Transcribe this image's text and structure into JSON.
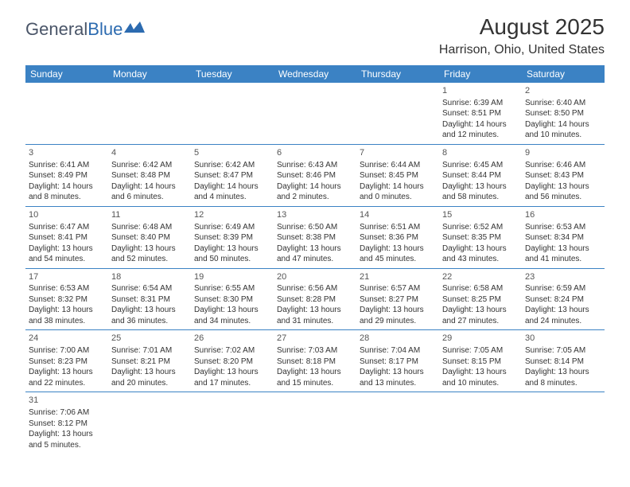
{
  "logo": {
    "text_dark": "General",
    "text_blue": "Blue"
  },
  "title": "August 2025",
  "location": "Harrison, Ohio, United States",
  "colors": {
    "header_bg": "#3b82c4",
    "header_text": "#ffffff",
    "row_border": "#3b82c4",
    "body_text": "#333333",
    "logo_dark": "#4a5568",
    "logo_blue": "#2c6bb0"
  },
  "day_headers": [
    "Sunday",
    "Monday",
    "Tuesday",
    "Wednesday",
    "Thursday",
    "Friday",
    "Saturday"
  ],
  "weeks": [
    [
      null,
      null,
      null,
      null,
      null,
      {
        "day": "1",
        "sunrise": "Sunrise: 6:39 AM",
        "sunset": "Sunset: 8:51 PM",
        "daylight1": "Daylight: 14 hours",
        "daylight2": "and 12 minutes."
      },
      {
        "day": "2",
        "sunrise": "Sunrise: 6:40 AM",
        "sunset": "Sunset: 8:50 PM",
        "daylight1": "Daylight: 14 hours",
        "daylight2": "and 10 minutes."
      }
    ],
    [
      {
        "day": "3",
        "sunrise": "Sunrise: 6:41 AM",
        "sunset": "Sunset: 8:49 PM",
        "daylight1": "Daylight: 14 hours",
        "daylight2": "and 8 minutes."
      },
      {
        "day": "4",
        "sunrise": "Sunrise: 6:42 AM",
        "sunset": "Sunset: 8:48 PM",
        "daylight1": "Daylight: 14 hours",
        "daylight2": "and 6 minutes."
      },
      {
        "day": "5",
        "sunrise": "Sunrise: 6:42 AM",
        "sunset": "Sunset: 8:47 PM",
        "daylight1": "Daylight: 14 hours",
        "daylight2": "and 4 minutes."
      },
      {
        "day": "6",
        "sunrise": "Sunrise: 6:43 AM",
        "sunset": "Sunset: 8:46 PM",
        "daylight1": "Daylight: 14 hours",
        "daylight2": "and 2 minutes."
      },
      {
        "day": "7",
        "sunrise": "Sunrise: 6:44 AM",
        "sunset": "Sunset: 8:45 PM",
        "daylight1": "Daylight: 14 hours",
        "daylight2": "and 0 minutes."
      },
      {
        "day": "8",
        "sunrise": "Sunrise: 6:45 AM",
        "sunset": "Sunset: 8:44 PM",
        "daylight1": "Daylight: 13 hours",
        "daylight2": "and 58 minutes."
      },
      {
        "day": "9",
        "sunrise": "Sunrise: 6:46 AM",
        "sunset": "Sunset: 8:43 PM",
        "daylight1": "Daylight: 13 hours",
        "daylight2": "and 56 minutes."
      }
    ],
    [
      {
        "day": "10",
        "sunrise": "Sunrise: 6:47 AM",
        "sunset": "Sunset: 8:41 PM",
        "daylight1": "Daylight: 13 hours",
        "daylight2": "and 54 minutes."
      },
      {
        "day": "11",
        "sunrise": "Sunrise: 6:48 AM",
        "sunset": "Sunset: 8:40 PM",
        "daylight1": "Daylight: 13 hours",
        "daylight2": "and 52 minutes."
      },
      {
        "day": "12",
        "sunrise": "Sunrise: 6:49 AM",
        "sunset": "Sunset: 8:39 PM",
        "daylight1": "Daylight: 13 hours",
        "daylight2": "and 50 minutes."
      },
      {
        "day": "13",
        "sunrise": "Sunrise: 6:50 AM",
        "sunset": "Sunset: 8:38 PM",
        "daylight1": "Daylight: 13 hours",
        "daylight2": "and 47 minutes."
      },
      {
        "day": "14",
        "sunrise": "Sunrise: 6:51 AM",
        "sunset": "Sunset: 8:36 PM",
        "daylight1": "Daylight: 13 hours",
        "daylight2": "and 45 minutes."
      },
      {
        "day": "15",
        "sunrise": "Sunrise: 6:52 AM",
        "sunset": "Sunset: 8:35 PM",
        "daylight1": "Daylight: 13 hours",
        "daylight2": "and 43 minutes."
      },
      {
        "day": "16",
        "sunrise": "Sunrise: 6:53 AM",
        "sunset": "Sunset: 8:34 PM",
        "daylight1": "Daylight: 13 hours",
        "daylight2": "and 41 minutes."
      }
    ],
    [
      {
        "day": "17",
        "sunrise": "Sunrise: 6:53 AM",
        "sunset": "Sunset: 8:32 PM",
        "daylight1": "Daylight: 13 hours",
        "daylight2": "and 38 minutes."
      },
      {
        "day": "18",
        "sunrise": "Sunrise: 6:54 AM",
        "sunset": "Sunset: 8:31 PM",
        "daylight1": "Daylight: 13 hours",
        "daylight2": "and 36 minutes."
      },
      {
        "day": "19",
        "sunrise": "Sunrise: 6:55 AM",
        "sunset": "Sunset: 8:30 PM",
        "daylight1": "Daylight: 13 hours",
        "daylight2": "and 34 minutes."
      },
      {
        "day": "20",
        "sunrise": "Sunrise: 6:56 AM",
        "sunset": "Sunset: 8:28 PM",
        "daylight1": "Daylight: 13 hours",
        "daylight2": "and 31 minutes."
      },
      {
        "day": "21",
        "sunrise": "Sunrise: 6:57 AM",
        "sunset": "Sunset: 8:27 PM",
        "daylight1": "Daylight: 13 hours",
        "daylight2": "and 29 minutes."
      },
      {
        "day": "22",
        "sunrise": "Sunrise: 6:58 AM",
        "sunset": "Sunset: 8:25 PM",
        "daylight1": "Daylight: 13 hours",
        "daylight2": "and 27 minutes."
      },
      {
        "day": "23",
        "sunrise": "Sunrise: 6:59 AM",
        "sunset": "Sunset: 8:24 PM",
        "daylight1": "Daylight: 13 hours",
        "daylight2": "and 24 minutes."
      }
    ],
    [
      {
        "day": "24",
        "sunrise": "Sunrise: 7:00 AM",
        "sunset": "Sunset: 8:23 PM",
        "daylight1": "Daylight: 13 hours",
        "daylight2": "and 22 minutes."
      },
      {
        "day": "25",
        "sunrise": "Sunrise: 7:01 AM",
        "sunset": "Sunset: 8:21 PM",
        "daylight1": "Daylight: 13 hours",
        "daylight2": "and 20 minutes."
      },
      {
        "day": "26",
        "sunrise": "Sunrise: 7:02 AM",
        "sunset": "Sunset: 8:20 PM",
        "daylight1": "Daylight: 13 hours",
        "daylight2": "and 17 minutes."
      },
      {
        "day": "27",
        "sunrise": "Sunrise: 7:03 AM",
        "sunset": "Sunset: 8:18 PM",
        "daylight1": "Daylight: 13 hours",
        "daylight2": "and 15 minutes."
      },
      {
        "day": "28",
        "sunrise": "Sunrise: 7:04 AM",
        "sunset": "Sunset: 8:17 PM",
        "daylight1": "Daylight: 13 hours",
        "daylight2": "and 13 minutes."
      },
      {
        "day": "29",
        "sunrise": "Sunrise: 7:05 AM",
        "sunset": "Sunset: 8:15 PM",
        "daylight1": "Daylight: 13 hours",
        "daylight2": "and 10 minutes."
      },
      {
        "day": "30",
        "sunrise": "Sunrise: 7:05 AM",
        "sunset": "Sunset: 8:14 PM",
        "daylight1": "Daylight: 13 hours",
        "daylight2": "and 8 minutes."
      }
    ],
    [
      {
        "day": "31",
        "sunrise": "Sunrise: 7:06 AM",
        "sunset": "Sunset: 8:12 PM",
        "daylight1": "Daylight: 13 hours",
        "daylight2": "and 5 minutes."
      },
      null,
      null,
      null,
      null,
      null,
      null
    ]
  ]
}
